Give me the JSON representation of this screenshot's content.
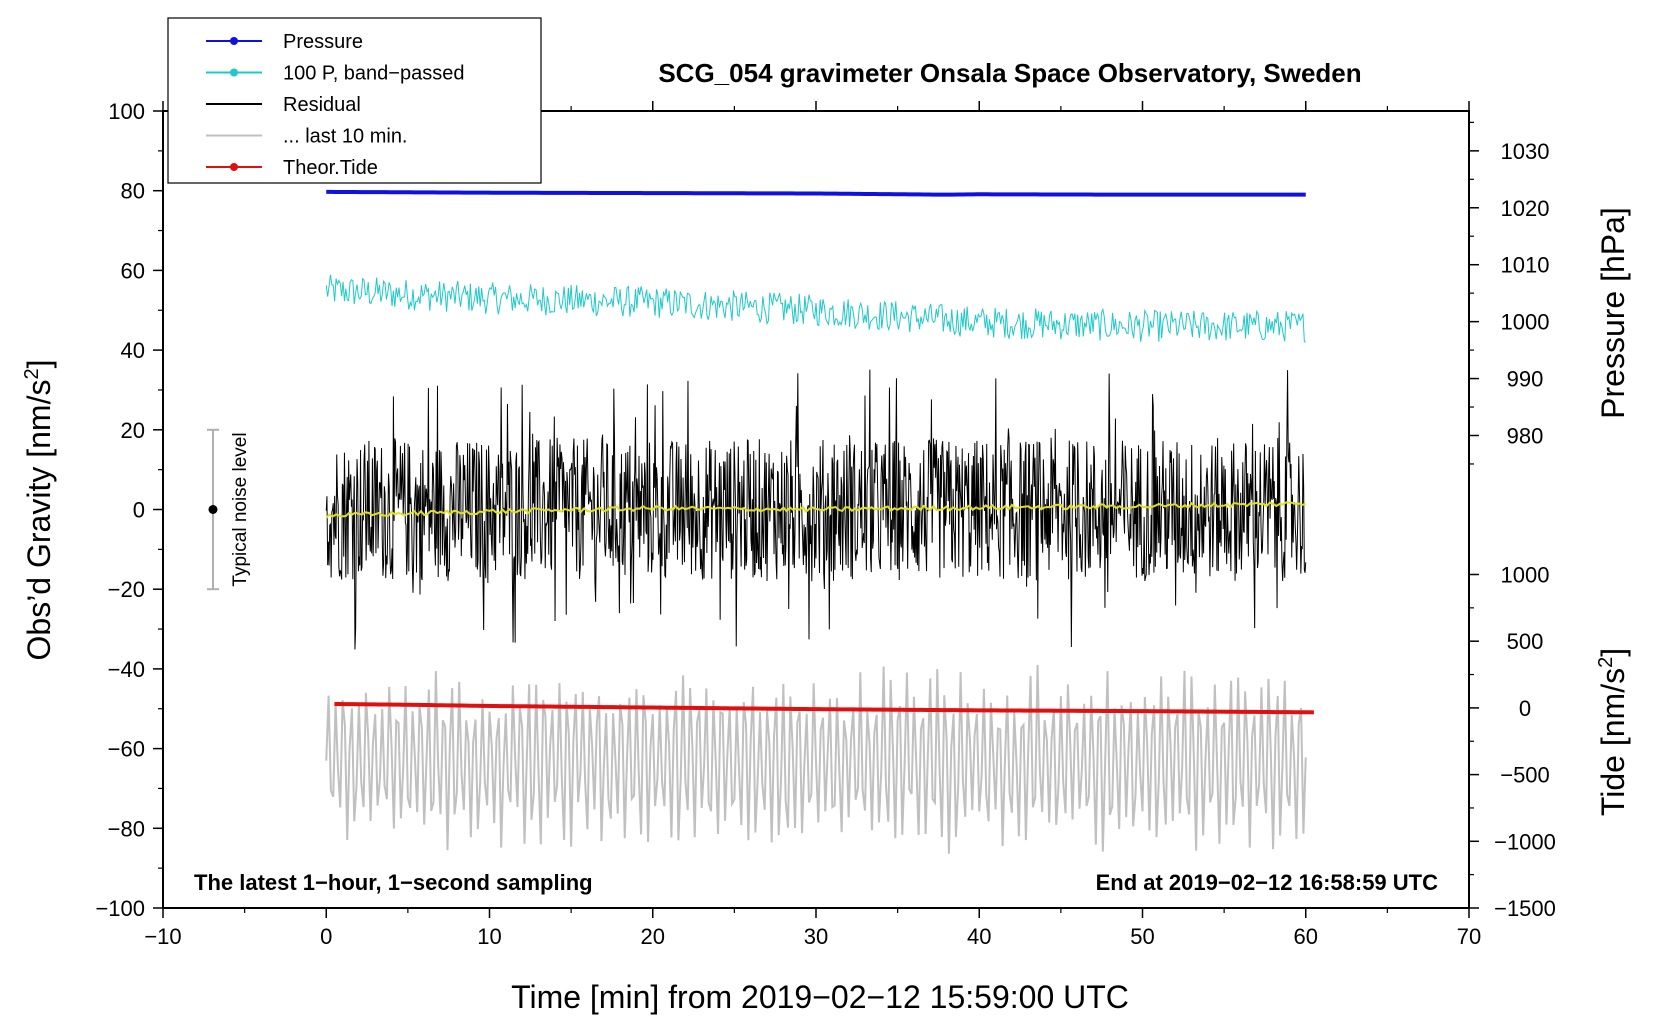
{
  "chart_data": {
    "type": "line",
    "title": "SCG_054 gravimeter Onsala Space Observatory, Sweden",
    "xlabel": "Time [min] from 2019−02−12 15:59:00 UTC",
    "ylabel_left": "Obs’d Gravity [nm/s",
    "ylabel_left_sup": "2",
    "ylabel_left_end": "]",
    "ylabel_right_pressure": "Pressure [hPa]",
    "ylabel_right_tide": "Tide [nm/s",
    "ylabel_right_tide_sup": "2",
    "ylabel_right_tide_end": "]",
    "xlim": [
      -10,
      70
    ],
    "ylim_left": [
      -100,
      100
    ],
    "xticks": [
      "−10",
      "0",
      "10",
      "20",
      "30",
      "40",
      "50",
      "60",
      "70"
    ],
    "yticks_left": [
      "100",
      "80",
      "60",
      "40",
      "20",
      "0",
      "−20",
      "−40",
      "−60",
      "−80",
      "−100"
    ],
    "yticks_pressure": [
      "1030",
      "1020",
      "1010",
      "1000",
      "990",
      "980"
    ],
    "yticks_tide": [
      "1000",
      "500",
      "0",
      "−500",
      "−1000",
      "−1500"
    ],
    "pressure_range_hpa": [
      967,
      1037
    ],
    "tide_range": [
      -1500,
      1500
    ],
    "annotation_left": "The latest 1−hour, 1−second sampling",
    "annotation_right": "End at 2019−02−12 16:58:59 UTC",
    "noise_label": "Typical noise level",
    "noise_range": [
      -20,
      20
    ],
    "legend": [
      {
        "label": "Pressure",
        "color": "#1010e0",
        "marker": true
      },
      {
        "label": "100 P, band−passed",
        "color": "#20c8c8",
        "marker": true
      },
      {
        "label": "Residual",
        "color": "#000000",
        "marker": false
      },
      {
        "label": "... last 10 min.",
        "color": "#c0c0c0",
        "marker": false
      },
      {
        "label": "Theor.Tide",
        "color": "#e01010",
        "marker": true
      }
    ],
    "series": [
      {
        "name": "Pressure",
        "color": "#1010e0",
        "x": [
          0,
          10,
          20,
          30,
          38,
          40,
          50,
          60
        ],
        "y": [
          79.7,
          79.5,
          79.4,
          79.3,
          79.0,
          79.1,
          79.0,
          79.0
        ]
      },
      {
        "name": "100 P, band−passed",
        "color": "#20c8c8",
        "x": [
          0,
          10,
          20,
          30,
          40,
          50,
          60
        ],
        "y": [
          55,
          53,
          52,
          50,
          47,
          46,
          46
        ],
        "amplitude": 4
      },
      {
        "name": "Residual",
        "color": "#000000",
        "x": [
          0,
          10,
          20,
          30,
          40,
          50,
          60
        ],
        "y": [
          0,
          0,
          0,
          0,
          0,
          0,
          0
        ],
        "amplitude": 18
      },
      {
        "name": "Residual smoothed",
        "color": "#e0e020",
        "x": [
          0,
          10,
          20,
          30,
          40,
          50,
          60
        ],
        "y": [
          -1.5,
          -0.5,
          0.3,
          0,
          0.5,
          0.8,
          1.5
        ]
      },
      {
        "name": "... last 10 min.",
        "color": "#c0c0c0",
        "x": [
          0,
          10,
          20,
          30,
          40,
          50,
          60
        ],
        "y": [
          -63,
          -63,
          -63,
          -63,
          -63,
          -63,
          -63
        ],
        "amplitude": 22
      },
      {
        "name": "Theor.Tide",
        "color": "#e01010",
        "x": [
          0.5,
          5,
          10,
          20,
          30,
          40,
          50,
          60.5
        ],
        "y": [
          -48.8,
          -49.0,
          -49.3,
          -49.7,
          -50.1,
          -50.4,
          -50.6,
          -50.9
        ]
      }
    ]
  }
}
